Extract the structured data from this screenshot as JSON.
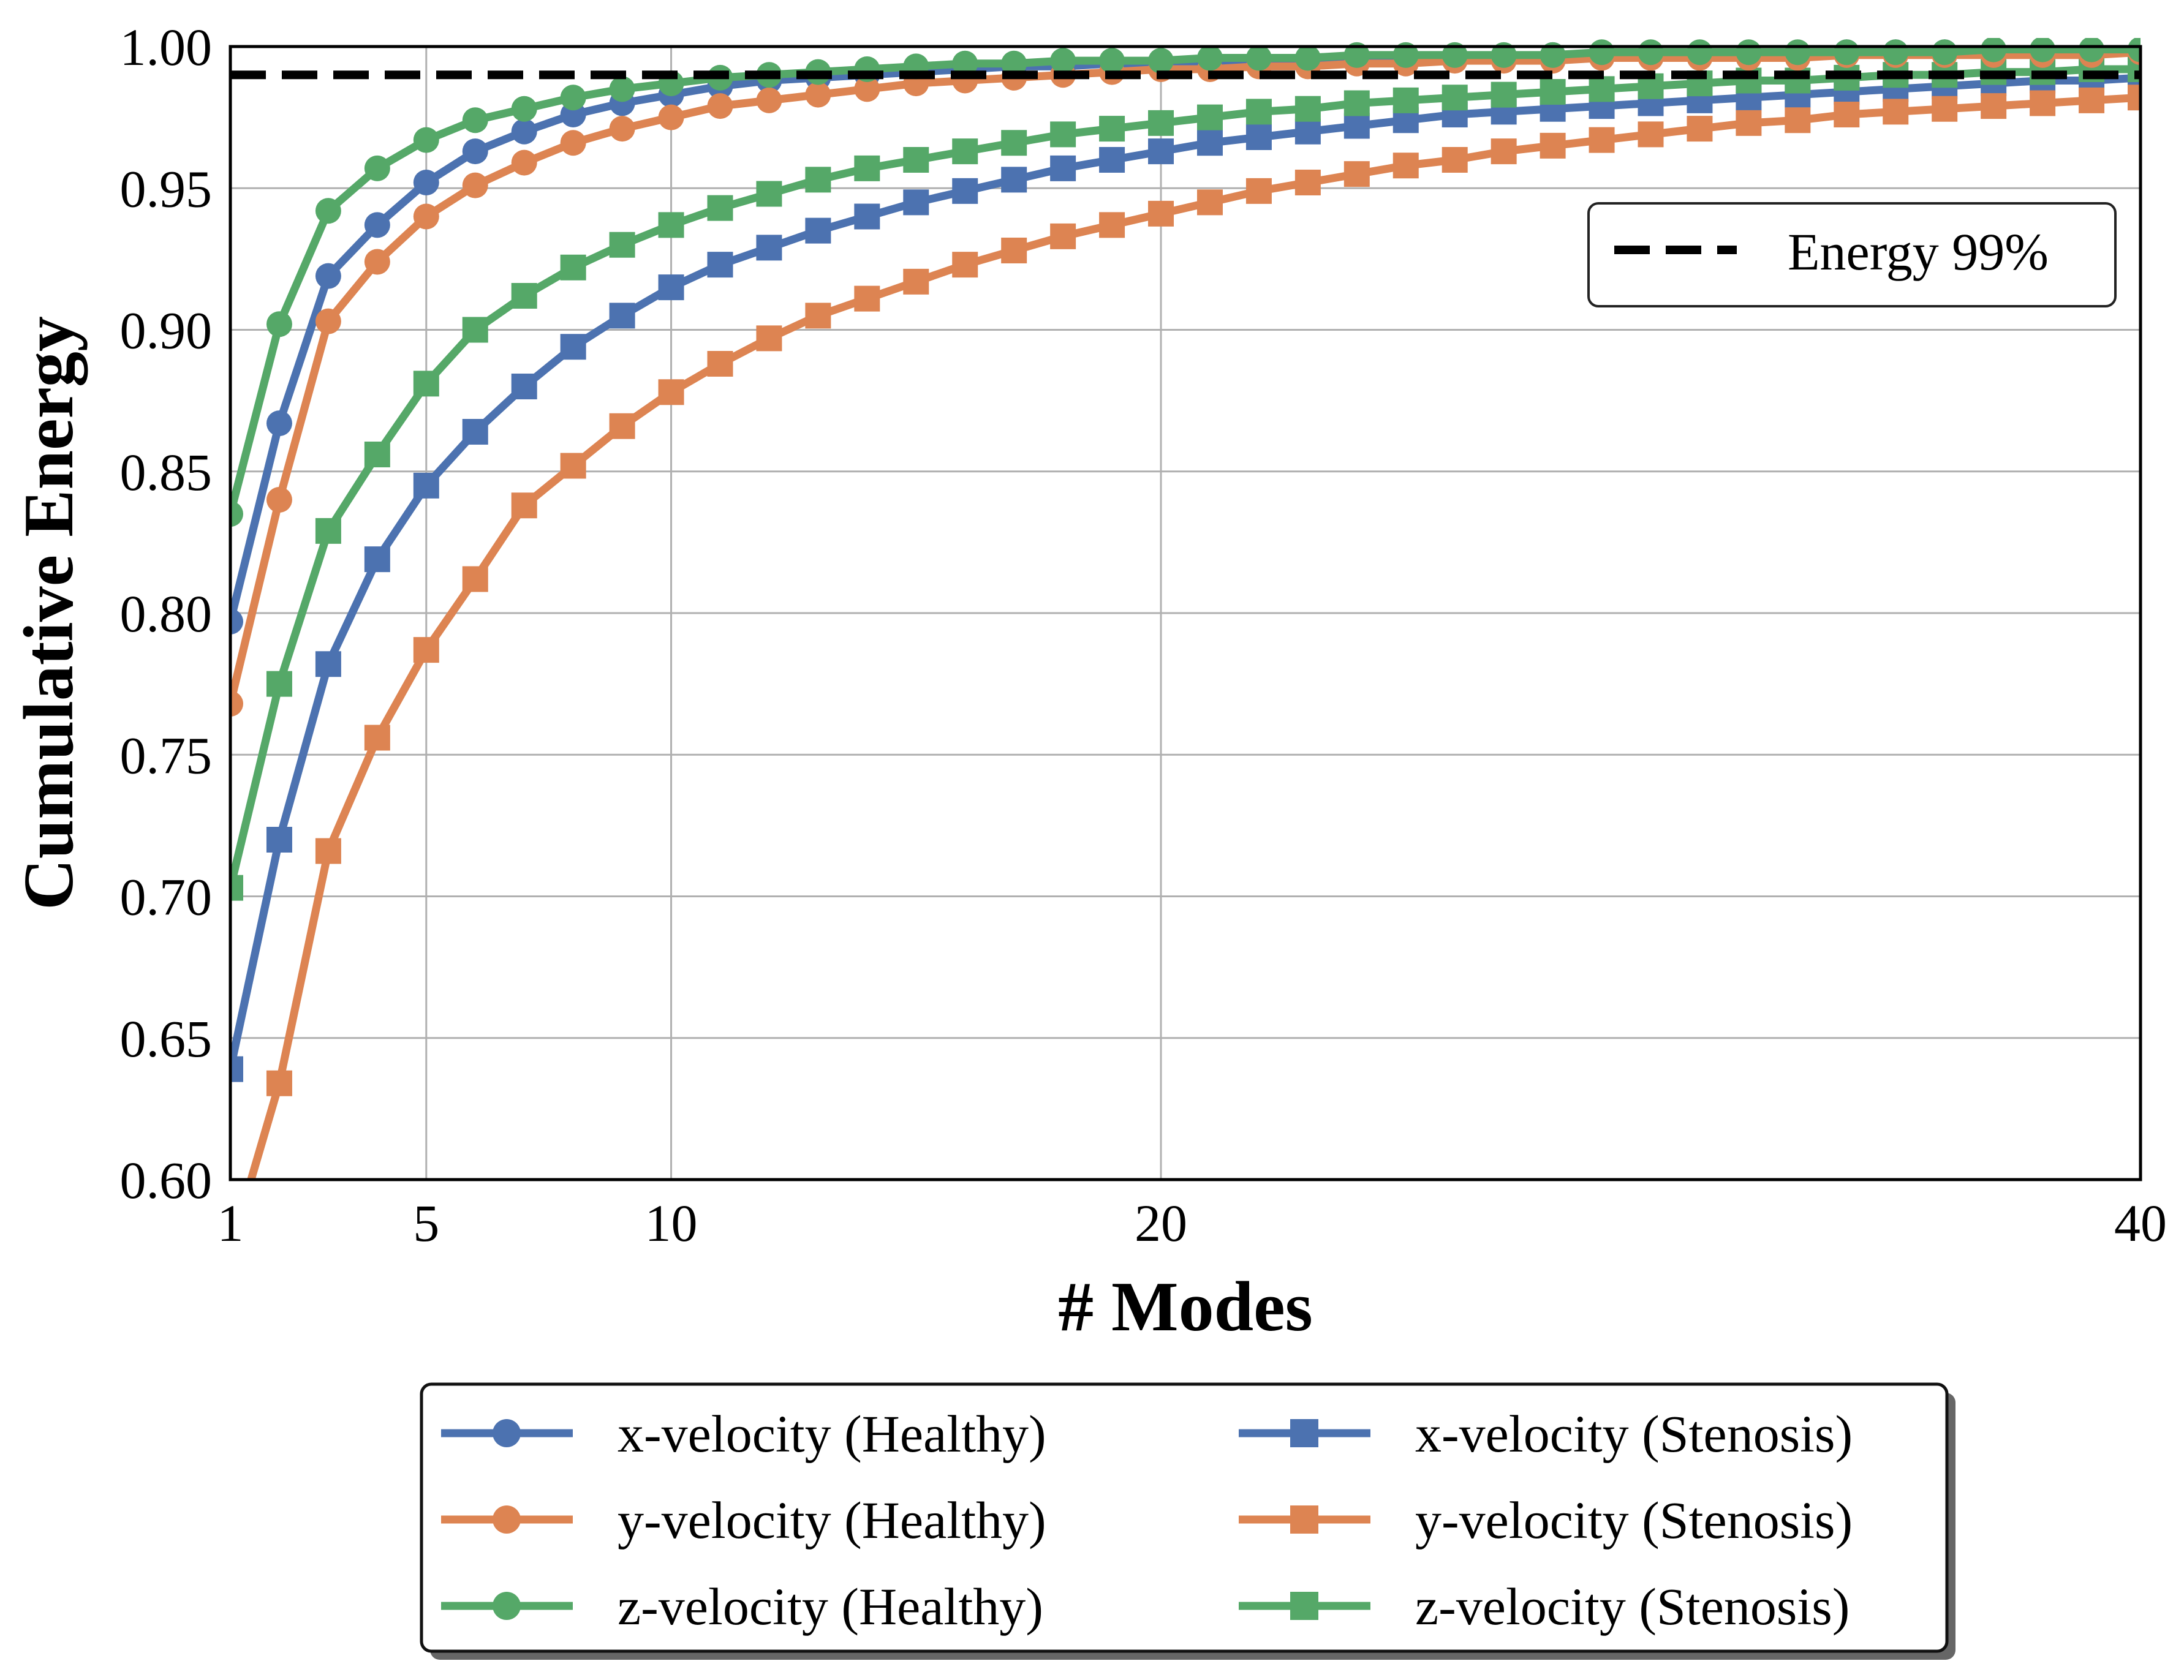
{
  "chart_data": {
    "type": "line",
    "title": "",
    "xlabel": "# Modes",
    "ylabel": "Cumulative Energy",
    "xlim": [
      1,
      40
    ],
    "ylim": [
      0.6,
      1.0
    ],
    "xticks": [
      1,
      5,
      10,
      20,
      40
    ],
    "yticks": [
      0.6,
      0.65,
      0.7,
      0.75,
      0.8,
      0.85,
      0.9,
      0.95,
      1.0
    ],
    "xtick_labels": [
      "1",
      "5",
      "10",
      "20",
      "40"
    ],
    "ytick_labels": [
      "0.60",
      "0.65",
      "0.70",
      "0.75",
      "0.80",
      "0.85",
      "0.90",
      "0.95",
      "1.00"
    ],
    "grid": true,
    "reference_line": {
      "name": "Energy 99%",
      "y": 0.99,
      "style": "dashed",
      "color": "#000000"
    },
    "inner_legend_placement": "upper-right",
    "legend_placement": "below-plot",
    "x": [
      1,
      2,
      3,
      4,
      5,
      6,
      7,
      8,
      9,
      10,
      11,
      12,
      13,
      14,
      15,
      16,
      17,
      18,
      19,
      20,
      21,
      22,
      23,
      24,
      25,
      26,
      27,
      28,
      29,
      30,
      31,
      32,
      33,
      34,
      35,
      36,
      37,
      38,
      39,
      40
    ],
    "series": [
      {
        "name": "x-velocity (Healthy)",
        "color": "#4c72b0",
        "marker": "circle",
        "values": [
          0.797,
          0.867,
          0.919,
          0.937,
          0.952,
          0.963,
          0.97,
          0.976,
          0.98,
          0.983,
          0.986,
          0.988,
          0.989,
          0.99,
          0.991,
          0.992,
          0.993,
          0.993,
          0.994,
          0.994,
          0.995,
          0.995,
          0.995,
          0.996,
          0.996,
          0.996,
          0.996,
          0.997,
          0.997,
          0.997,
          0.997,
          0.997,
          0.997,
          0.998,
          0.998,
          0.998,
          0.998,
          0.998,
          0.998,
          0.998
        ]
      },
      {
        "name": "y-velocity (Healthy)",
        "color": "#dd8452",
        "marker": "circle",
        "values": [
          0.768,
          0.84,
          0.903,
          0.924,
          0.94,
          0.951,
          0.959,
          0.966,
          0.971,
          0.975,
          0.979,
          0.981,
          0.983,
          0.985,
          0.987,
          0.988,
          0.989,
          0.99,
          0.991,
          0.992,
          0.992,
          0.993,
          0.993,
          0.994,
          0.994,
          0.995,
          0.995,
          0.995,
          0.996,
          0.996,
          0.996,
          0.996,
          0.996,
          0.997,
          0.997,
          0.997,
          0.997,
          0.997,
          0.997,
          0.998
        ]
      },
      {
        "name": "z-velocity (Healthy)",
        "color": "#55a868",
        "marker": "circle",
        "values": [
          0.835,
          0.902,
          0.942,
          0.957,
          0.967,
          0.974,
          0.978,
          0.982,
          0.985,
          0.987,
          0.989,
          0.99,
          0.991,
          0.992,
          0.993,
          0.994,
          0.994,
          0.995,
          0.995,
          0.995,
          0.996,
          0.996,
          0.996,
          0.997,
          0.997,
          0.997,
          0.997,
          0.997,
          0.998,
          0.998,
          0.998,
          0.998,
          0.998,
          0.998,
          0.998,
          0.998,
          0.999,
          0.999,
          0.999,
          0.999
        ]
      },
      {
        "name": "x-velocity (Stenosis)",
        "color": "#4c72b0",
        "marker": "square",
        "values": [
          0.639,
          0.72,
          0.782,
          0.819,
          0.845,
          0.864,
          0.88,
          0.894,
          0.905,
          0.915,
          0.923,
          0.929,
          0.935,
          0.94,
          0.945,
          0.949,
          0.953,
          0.957,
          0.96,
          0.963,
          0.966,
          0.968,
          0.97,
          0.972,
          0.974,
          0.976,
          0.977,
          0.978,
          0.979,
          0.98,
          0.981,
          0.982,
          0.983,
          0.984,
          0.985,
          0.986,
          0.987,
          0.988,
          0.988,
          0.989
        ]
      },
      {
        "name": "y-velocity (Stenosis)",
        "color": "#dd8452",
        "marker": "square",
        "values": [
          0.575,
          0.634,
          0.716,
          0.756,
          0.787,
          0.812,
          0.838,
          0.852,
          0.866,
          0.878,
          0.888,
          0.897,
          0.905,
          0.911,
          0.917,
          0.923,
          0.928,
          0.933,
          0.937,
          0.941,
          0.945,
          0.949,
          0.952,
          0.955,
          0.958,
          0.96,
          0.963,
          0.965,
          0.967,
          0.969,
          0.971,
          0.973,
          0.974,
          0.976,
          0.977,
          0.978,
          0.979,
          0.98,
          0.981,
          0.982
        ]
      },
      {
        "name": "z-velocity (Stenosis)",
        "color": "#55a868",
        "marker": "square",
        "values": [
          0.703,
          0.775,
          0.829,
          0.856,
          0.881,
          0.9,
          0.912,
          0.922,
          0.93,
          0.937,
          0.943,
          0.948,
          0.953,
          0.957,
          0.96,
          0.963,
          0.966,
          0.969,
          0.971,
          0.973,
          0.975,
          0.977,
          0.978,
          0.98,
          0.981,
          0.982,
          0.983,
          0.984,
          0.985,
          0.986,
          0.987,
          0.988,
          0.988,
          0.989,
          0.99,
          0.99,
          0.991,
          0.991,
          0.992,
          0.992
        ]
      }
    ]
  }
}
